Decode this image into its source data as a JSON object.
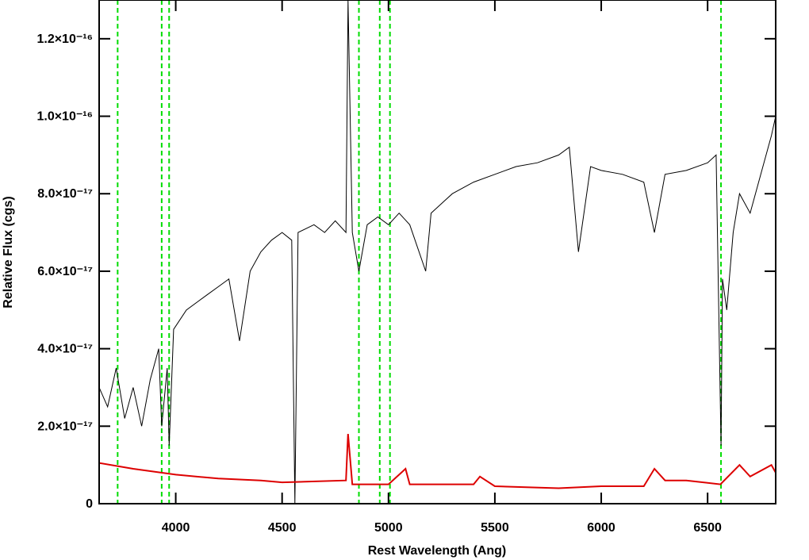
{
  "chart_data": {
    "type": "line",
    "x_label": "Rest Wavelength (Ang)",
    "y_label": "Relative Flux (cgs)",
    "xlim": [
      3640,
      6820
    ],
    "ylim": [
      0,
      1.3e-16
    ],
    "xticks": [
      4000,
      4500,
      5000,
      5500,
      6000,
      6500
    ],
    "yticks": [
      0,
      {
        "value": 2e-17,
        "label": "2.0×10⁻¹⁷"
      },
      {
        "value": 4e-17,
        "label": "4.0×10⁻¹⁷"
      },
      {
        "value": 6e-17,
        "label": "6.0×10⁻¹⁷"
      },
      {
        "value": 8e-17,
        "label": "8.0×10⁻¹⁷"
      },
      {
        "value": 1e-16,
        "label": "1.0×10⁻¹⁶"
      },
      {
        "value": 1.2e-16,
        "label": "1.2×10⁻¹⁶"
      }
    ],
    "reference_lines": {
      "color": "#00dd00",
      "x": [
        3727,
        3934,
        3969,
        4861,
        4959,
        5007,
        6563
      ]
    },
    "series": [
      {
        "color": "#000000",
        "x": [
          3640,
          3680,
          3720,
          3760,
          3800,
          3840,
          3880,
          3920,
          3934,
          3960,
          3969,
          3990,
          4050,
          4100,
          4150,
          4200,
          4250,
          4300,
          4350,
          4400,
          4450,
          4500,
          4545,
          4560,
          4575,
          4650,
          4700,
          4750,
          4800,
          4810,
          4830,
          4861,
          4900,
          4950,
          5000,
          5050,
          5100,
          5175,
          5200,
          5300,
          5400,
          5500,
          5600,
          5700,
          5800,
          5850,
          5893,
          5950,
          6000,
          6100,
          6200,
          6250,
          6300,
          6400,
          6500,
          6540,
          6563,
          6570,
          6590,
          6620,
          6650,
          6700,
          6750,
          6800,
          6820
        ],
        "values": [
          3e-17,
          2.5e-17,
          3.5e-17,
          2.2e-17,
          3e-17,
          2e-17,
          3.2e-17,
          4e-17,
          2e-17,
          3.5e-17,
          1.5e-17,
          4.5e-17,
          5e-17,
          5.2e-17,
          5.4e-17,
          5.6e-17,
          5.8e-17,
          4.2e-17,
          6e-17,
          6.5e-17,
          6.8e-17,
          7e-17,
          6.8e-17,
          0,
          7e-17,
          7.2e-17,
          7e-17,
          7.3e-17,
          7e-17,
          1.3e-16,
          7e-17,
          6e-17,
          7.2e-17,
          7.4e-17,
          7.2e-17,
          7.5e-17,
          7.2e-17,
          6e-17,
          7.5e-17,
          8e-17,
          8.3e-17,
          8.5e-17,
          8.7e-17,
          8.8e-17,
          9e-17,
          9.2e-17,
          6.5e-17,
          8.7e-17,
          8.6e-17,
          8.5e-17,
          8.3e-17,
          7e-17,
          8.5e-17,
          8.6e-17,
          8.8e-17,
          9e-17,
          1.5e-17,
          5.8e-17,
          5e-17,
          7e-17,
          8e-17,
          7.5e-17,
          8.5e-17,
          9.5e-17,
          1e-16
        ]
      },
      {
        "color": "#dd0000",
        "x": [
          3640,
          3800,
          4000,
          4200,
          4400,
          4500,
          4800,
          4810,
          4830,
          5000,
          5080,
          5100,
          5400,
          5430,
          5500,
          5800,
          6000,
          6200,
          6250,
          6300,
          6400,
          6560,
          6650,
          6700,
          6800,
          6820
        ],
        "values": [
          1.05e-17,
          9e-18,
          7.5e-18,
          6.5e-18,
          6e-18,
          5.5e-18,
          6e-18,
          1.8e-17,
          5e-18,
          5e-18,
          9e-18,
          5e-18,
          5e-18,
          7e-18,
          4.5e-18,
          4e-18,
          4.5e-18,
          4.5e-18,
          9e-18,
          6e-18,
          6e-18,
          5e-18,
          1e-17,
          7e-18,
          1e-17,
          8e-18
        ]
      }
    ]
  }
}
